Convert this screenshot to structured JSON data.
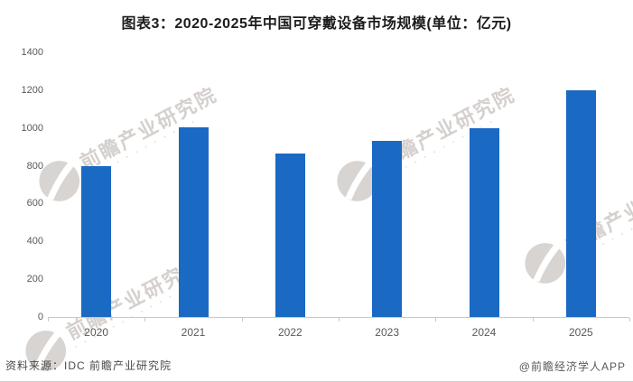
{
  "chart_data": {
    "type": "bar",
    "title": "图表3：2020-2025年中国可穿戴设备市场规模(单位：亿元)",
    "unit": "亿元",
    "categories": [
      "2020",
      "2021",
      "2022",
      "2023",
      "2024",
      "2025"
    ],
    "values": [
      800,
      1005,
      865,
      930,
      1000,
      1200
    ],
    "xlabel": "",
    "ylabel": "",
    "ylim": [
      0,
      1400
    ],
    "ytick_step": 200,
    "yticks": [
      0,
      200,
      400,
      600,
      800,
      1000,
      1200,
      1400
    ],
    "grid": false,
    "legend": false,
    "bar_color": "#1a69c3",
    "axis_color": "#c9c9c9",
    "tick_label_color": "#595959"
  },
  "footer": {
    "source": "资料来源：IDC 前瞻产业研究院",
    "credit": "@前瞻经济学人APP"
  },
  "watermark": {
    "text": "前瞻产业研究院",
    "subtext_glyphs": "▪ ▪ ▪ ▪ ▪ ▪ ▪ ▪ ▪ ▪ ▪ ▪",
    "color": "#d6d2d0"
  }
}
